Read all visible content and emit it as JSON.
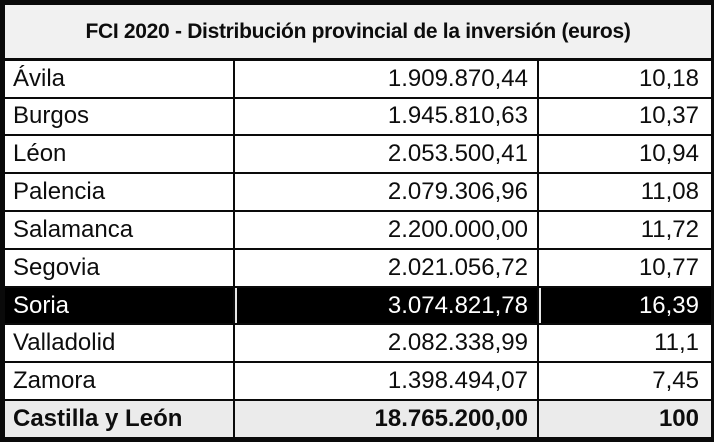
{
  "title": "FCI 2020 - Distribución provincial de la inversión (euros)",
  "table": {
    "rows": [
      {
        "name": "Ávila",
        "amount": "1.909.870,44",
        "percent": "10,18",
        "highlighted": false,
        "is_total": false
      },
      {
        "name": "Burgos",
        "amount": "1.945.810,63",
        "percent": "10,37",
        "highlighted": false,
        "is_total": false
      },
      {
        "name": "Léon",
        "amount": "2.053.500,41",
        "percent": "10,94",
        "highlighted": false,
        "is_total": false
      },
      {
        "name": "Palencia",
        "amount": "2.079.306,96",
        "percent": "11,08",
        "highlighted": false,
        "is_total": false
      },
      {
        "name": "Salamanca",
        "amount": "2.200.000,00",
        "percent": "11,72",
        "highlighted": false,
        "is_total": false
      },
      {
        "name": "Segovia",
        "amount": "2.021.056,72",
        "percent": "10,77",
        "highlighted": false,
        "is_total": false
      },
      {
        "name": "Soria",
        "amount": "3.074.821,78",
        "percent": "16,39",
        "highlighted": true,
        "is_total": false
      },
      {
        "name": "Valladolid",
        "amount": "2.082.338,99",
        "percent": "11,1",
        "highlighted": false,
        "is_total": false
      },
      {
        "name": "Zamora",
        "amount": "1.398.494,07",
        "percent": "7,45",
        "highlighted": false,
        "is_total": false
      },
      {
        "name": "Castilla y León",
        "amount": "18.765.200,00",
        "percent": "100",
        "highlighted": false,
        "is_total": true
      }
    ]
  },
  "colors": {
    "border": "#0a0a0a",
    "title_bg": "#f1f1f1",
    "row_bg": "#ffffff",
    "highlight_bg": "#000000",
    "highlight_text": "#ffffff",
    "total_bg": "#ebebeb",
    "text": "#0d0d0d"
  },
  "chart_data": {
    "type": "table",
    "title": "FCI 2020 - Distribución provincial de la inversión (euros)",
    "rows": [
      {
        "label": "Ávila",
        "investment_eur": 1909870.44,
        "percent": 10.18
      },
      {
        "label": "Burgos",
        "investment_eur": 1945810.63,
        "percent": 10.37
      },
      {
        "label": "Léon",
        "investment_eur": 2053500.41,
        "percent": 10.94
      },
      {
        "label": "Palencia",
        "investment_eur": 2079306.96,
        "percent": 11.08
      },
      {
        "label": "Salamanca",
        "investment_eur": 2200000.0,
        "percent": 11.72
      },
      {
        "label": "Segovia",
        "investment_eur": 2021056.72,
        "percent": 10.77
      },
      {
        "label": "Soria",
        "investment_eur": 3074821.78,
        "percent": 16.39
      },
      {
        "label": "Valladolid",
        "investment_eur": 2082338.99,
        "percent": 11.1
      },
      {
        "label": "Zamora",
        "investment_eur": 1398494.07,
        "percent": 7.45
      },
      {
        "label": "Castilla y León",
        "investment_eur": 18765200.0,
        "percent": 100
      }
    ],
    "highlighted_row": "Soria",
    "total_row": "Castilla y León",
    "layout": {
      "columns_align": [
        "left",
        "right",
        "right"
      ],
      "header_row": false
    }
  }
}
